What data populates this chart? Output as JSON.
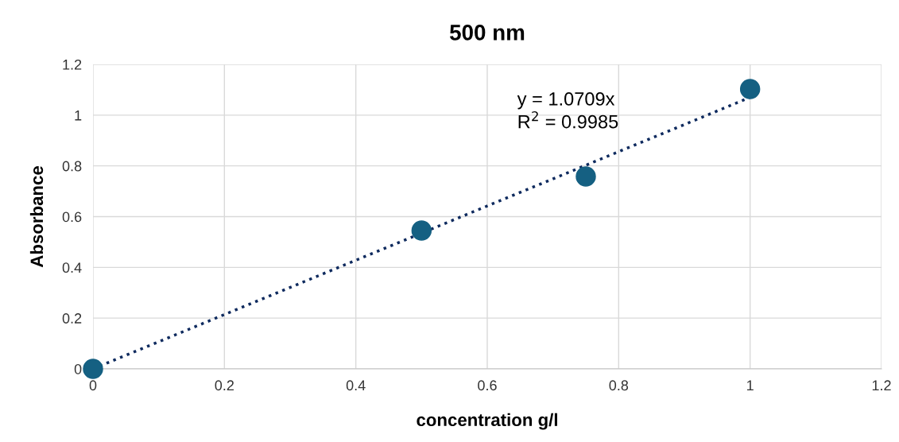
{
  "chart_data": {
    "type": "scatter",
    "title": "500 nm",
    "xlabel": "concentration g/l",
    "ylabel": "Absorbance",
    "x": [
      0,
      0.5,
      0.75,
      1
    ],
    "series": [
      {
        "color": "#156082",
        "values": [
          0,
          0.545,
          0.758,
          1.103
        ],
        "marker": "circle"
      },
      {
        "type": "line",
        "color": "#0e2a5e",
        "x": [
          0,
          1
        ],
        "values": [
          0,
          1.07
        ],
        "line_style": "dotted",
        "marker": "none"
      }
    ],
    "xlim": [
      0,
      1.2
    ],
    "xticks": [
      0,
      0.2,
      0.4,
      0.6,
      0.8,
      1,
      1.2
    ],
    "ylim": [
      0,
      1.2
    ],
    "yticks": [
      0,
      0.2,
      0.4,
      0.6,
      0.8,
      1,
      1.2
    ],
    "grid": true,
    "annotations": [
      "y = 1.0709x\nR$^{2}$ = 0.9985"
    ]
  }
}
